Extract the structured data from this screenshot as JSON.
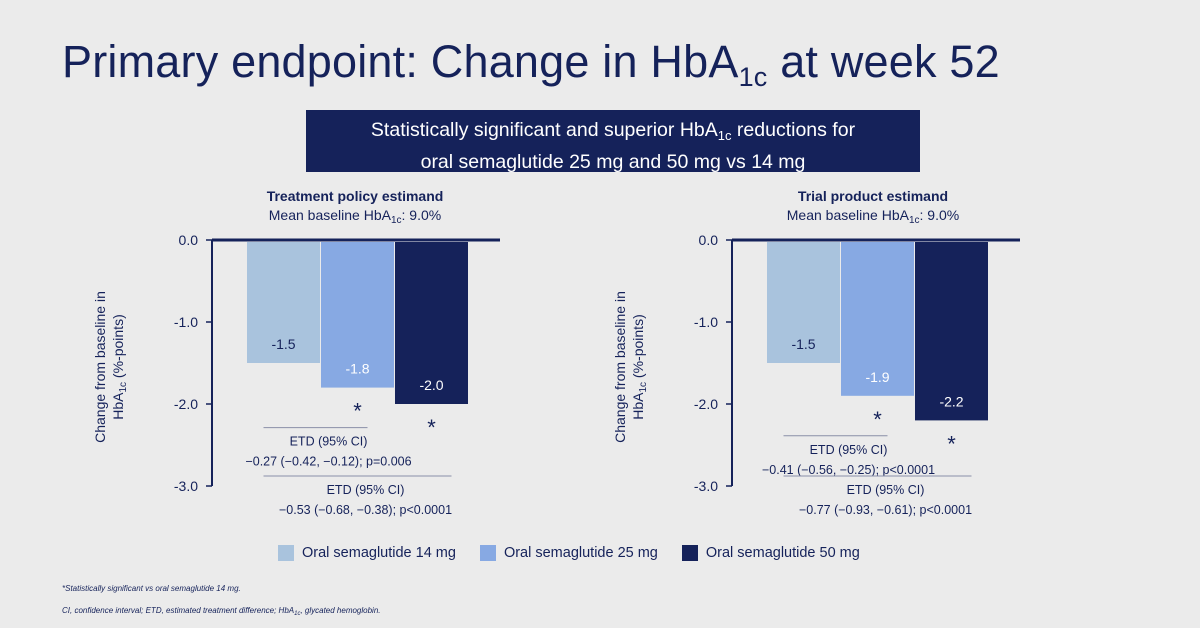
{
  "title": {
    "main": "Primary endpoint: Change in HbA",
    "sub": "1c",
    "tail": " at week 52"
  },
  "banner": {
    "line1_a": "Statistically significant and superior HbA",
    "line1_sub": "1c",
    "line1_b": " reductions for",
    "line2": "oral semaglutide 25 mg and 50 mg vs 14 mg"
  },
  "colors": {
    "s14": "#a9c3dd",
    "s25": "#87a9e3",
    "s50": "#15225a",
    "text": "#15225a",
    "bg": "#ebebeb"
  },
  "legend": [
    {
      "label": "Oral semaglutide 14 mg",
      "color": "#a9c3dd"
    },
    {
      "label": "Oral semaglutide 25 mg",
      "color": "#87a9e3"
    },
    {
      "label": "Oral semaglutide 50 mg",
      "color": "#15225a"
    }
  ],
  "footnotes": {
    "f1": "*Statistically significant vs oral semaglutide 14 mg.",
    "f2_a": "CI, confidence interval; ETD, estimated treatment difference; HbA",
    "f2_sub": "1c",
    "f2_b": ", glycated hemoglobin."
  },
  "chart_data": [
    {
      "type": "bar",
      "title": "Treatment policy estimand",
      "subtitle_a": "Mean baseline HbA",
      "subtitle_sub": "1c",
      "subtitle_b": ": 9.0%",
      "ylabel_line1": "Change from baseline in",
      "ylabel_a": "HbA",
      "ylabel_sub": "1c",
      "ylabel_b": " (%-points)",
      "ylim": [
        -3.0,
        0.0
      ],
      "yticks": [
        "0.0",
        "-1.0",
        "-2.0",
        "-3.0"
      ],
      "series": [
        {
          "name": "Oral semaglutide 14 mg",
          "value": -1.5,
          "label": "-1.5",
          "star": false
        },
        {
          "name": "Oral semaglutide 25 mg",
          "value": -1.8,
          "label": "-1.8",
          "star": true
        },
        {
          "name": "Oral semaglutide 50 mg",
          "value": -2.0,
          "label": "-2.0",
          "star": true
        }
      ],
      "annotations": [
        {
          "head": "ETD (95% CI)",
          "text": "−0.27 (−0.42, −0.12); p=0.006"
        },
        {
          "head": "ETD (95% CI)",
          "text": "−0.53 (−0.68, −0.38); p<0.0001"
        }
      ]
    },
    {
      "type": "bar",
      "title": "Trial product estimand",
      "subtitle_a": "Mean baseline HbA",
      "subtitle_sub": "1c",
      "subtitle_b": ": 9.0%",
      "ylabel_line1": "Change from baseline in",
      "ylabel_a": "HbA",
      "ylabel_sub": "1c",
      "ylabel_b": " (%-points)",
      "ylim": [
        -3.0,
        0.0
      ],
      "yticks": [
        "0.0",
        "-1.0",
        "-2.0",
        "-3.0"
      ],
      "series": [
        {
          "name": "Oral semaglutide 14 mg",
          "value": -1.5,
          "label": "-1.5",
          "star": false
        },
        {
          "name": "Oral semaglutide 25 mg",
          "value": -1.9,
          "label": "-1.9",
          "star": true
        },
        {
          "name": "Oral semaglutide 50 mg",
          "value": -2.2,
          "label": "-2.2",
          "star": true
        }
      ],
      "annotations": [
        {
          "head": "ETD (95% CI)",
          "text": "−0.41 (−0.56, −0.25); p<0.0001"
        },
        {
          "head": "ETD (95% CI)",
          "text": "−0.77 (−0.93, −0.61); p<0.0001"
        }
      ]
    }
  ]
}
